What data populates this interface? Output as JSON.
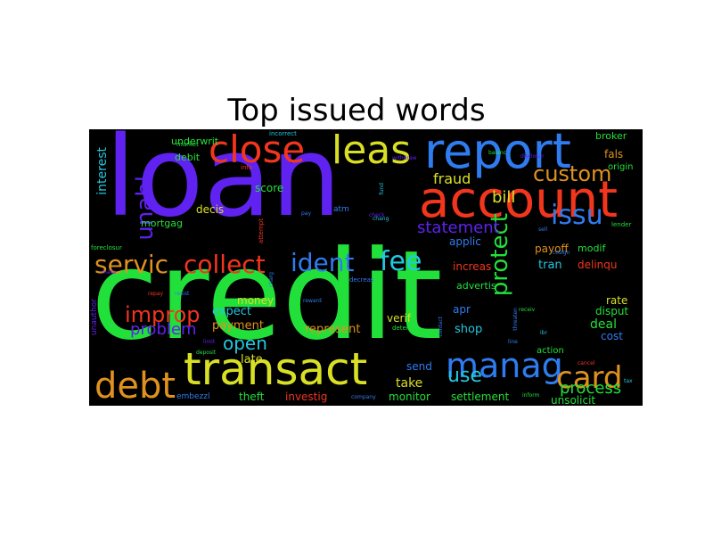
{
  "chart_data": {
    "type": "wordcloud",
    "title": "Top issued words",
    "background": "#000000",
    "words": [
      {
        "text": "credit",
        "color": "#22e03a"
      },
      {
        "text": "loan",
        "color": "#5f22f0"
      },
      {
        "text": "account",
        "color": "#f2361d"
      },
      {
        "text": "report",
        "color": "#2f7cf0"
      },
      {
        "text": "transact",
        "color": "#d9e024"
      },
      {
        "text": "leas",
        "color": "#d9e024"
      },
      {
        "text": "close",
        "color": "#f2361d"
      },
      {
        "text": "manag",
        "color": "#2f7cf0"
      },
      {
        "text": "debt",
        "color": "#e0921e"
      },
      {
        "text": "card",
        "color": "#e0921e"
      },
      {
        "text": "servic",
        "color": "#e0921e"
      },
      {
        "text": "collect",
        "color": "#f2361d"
      },
      {
        "text": "ident",
        "color": "#2f7cf0"
      },
      {
        "text": "fee",
        "color": "#22c8e0"
      },
      {
        "text": "unabl",
        "color": "#5f22f0"
      },
      {
        "text": "custom",
        "color": "#e0921e"
      },
      {
        "text": "issu",
        "color": "#2f7cf0"
      },
      {
        "text": "protect",
        "color": "#22e03a"
      },
      {
        "text": "improp",
        "color": "#f2361d"
      },
      {
        "text": "open",
        "color": "#22c8e0"
      },
      {
        "text": "use",
        "color": "#22c8e0"
      },
      {
        "text": "process",
        "color": "#22e03a"
      },
      {
        "text": "statement",
        "color": "#5f22f0"
      },
      {
        "text": "problem",
        "color": "#5f22f0"
      },
      {
        "text": "fraud",
        "color": "#d9e024"
      },
      {
        "text": "bill",
        "color": "#d9e024"
      },
      {
        "text": "interest",
        "color": "#22c8e0"
      },
      {
        "text": "take",
        "color": "#d9e024"
      },
      {
        "text": "payment",
        "color": "#e0921e"
      },
      {
        "text": "expect",
        "color": "#22c8e0"
      },
      {
        "text": "money",
        "color": "#d9e024"
      },
      {
        "text": "represent",
        "color": "#e0921e"
      },
      {
        "text": "late",
        "color": "#d9e024"
      },
      {
        "text": "theft",
        "color": "#22e03a"
      },
      {
        "text": "investig",
        "color": "#f2361d"
      },
      {
        "text": "monitor",
        "color": "#22e03a"
      },
      {
        "text": "settlement",
        "color": "#22e03a"
      },
      {
        "text": "unsolicit",
        "color": "#22e03a"
      },
      {
        "text": "send",
        "color": "#2f7cf0"
      },
      {
        "text": "shop",
        "color": "#22c8e0"
      },
      {
        "text": "apr",
        "color": "#2f7cf0"
      },
      {
        "text": "verif",
        "color": "#d9e024"
      },
      {
        "text": "advertis",
        "color": "#22e03a"
      },
      {
        "text": "deal",
        "color": "#22e03a"
      },
      {
        "text": "cost",
        "color": "#2f7cf0"
      },
      {
        "text": "disput",
        "color": "#22e03a"
      },
      {
        "text": "rate",
        "color": "#d9e024"
      },
      {
        "text": "increas",
        "color": "#f2361d"
      },
      {
        "text": "tran",
        "color": "#22c8e0"
      },
      {
        "text": "delinqu",
        "color": "#f2361d"
      },
      {
        "text": "payoff",
        "color": "#e0921e"
      },
      {
        "text": "modif",
        "color": "#22e03a"
      },
      {
        "text": "applic",
        "color": "#2f7cf0"
      },
      {
        "text": "decis",
        "color": "#d9e024"
      },
      {
        "text": "score",
        "color": "#22e03a"
      },
      {
        "text": "mortgag",
        "color": "#22e03a"
      },
      {
        "text": "debit",
        "color": "#22e03a"
      },
      {
        "text": "underwrit",
        "color": "#22e03a"
      },
      {
        "text": "broker",
        "color": "#22e03a"
      },
      {
        "text": "fals",
        "color": "#e0921e"
      },
      {
        "text": "origin",
        "color": "#22e03a"
      },
      {
        "text": "embezzl",
        "color": "#2f7cf0"
      },
      {
        "text": "action",
        "color": "#22e03a"
      },
      {
        "text": "unauthor",
        "color": "#5f22f0"
      },
      {
        "text": "atm",
        "color": "#2f7cf0"
      },
      {
        "text": "market",
        "color": "#22e03a"
      },
      {
        "text": "info",
        "color": "#f2361d"
      },
      {
        "text": "attempt",
        "color": "#f2361d"
      },
      {
        "text": "pay",
        "color": "#2f7cf0"
      },
      {
        "text": "incorrect",
        "color": "#22c8e0"
      },
      {
        "text": "lender",
        "color": "#22e03a"
      },
      {
        "text": "foreclosur",
        "color": "#22e03a"
      },
      {
        "text": "decreas",
        "color": "#2f7cf0"
      },
      {
        "text": "reward",
        "color": "#2f7cf0"
      },
      {
        "text": "determin",
        "color": "#22e03a"
      },
      {
        "text": "contact",
        "color": "#2f7cf0"
      },
      {
        "text": "deposit",
        "color": "#22e03a"
      },
      {
        "text": "company",
        "color": "#2f7cf0"
      },
      {
        "text": "inform",
        "color": "#22e03a"
      },
      {
        "text": "cancel",
        "color": "#f2361d"
      },
      {
        "text": "disclosur",
        "color": "#5f22f0"
      },
      {
        "text": "threaten",
        "color": "#2f7cf0"
      },
      {
        "text": "line",
        "color": "#2f7cf0"
      },
      {
        "text": "make",
        "color": "#5f22f0"
      },
      {
        "text": "repay",
        "color": "#f2361d"
      },
      {
        "text": "resist",
        "color": "#2f7cf0"
      },
      {
        "text": "charg",
        "color": "#2f7cf0"
      },
      {
        "text": "balanc",
        "color": "#22e03a"
      },
      {
        "text": "cosign",
        "color": "#2f7cf0"
      },
      {
        "text": "ibr",
        "color": "#22c8e0"
      },
      {
        "text": "withdraw",
        "color": "#5f22f0"
      },
      {
        "text": "fund",
        "color": "#22c8e0"
      },
      {
        "text": "chang",
        "color": "#22c8e0"
      },
      {
        "text": "receiv",
        "color": "#22e03a"
      },
      {
        "text": "limit",
        "color": "#5f22f0"
      },
      {
        "text": "sell",
        "color": "#2f7cf0"
      },
      {
        "text": "tax",
        "color": "#22c8e0"
      },
      {
        "text": "check",
        "color": "#5f22f0"
      }
    ]
  }
}
